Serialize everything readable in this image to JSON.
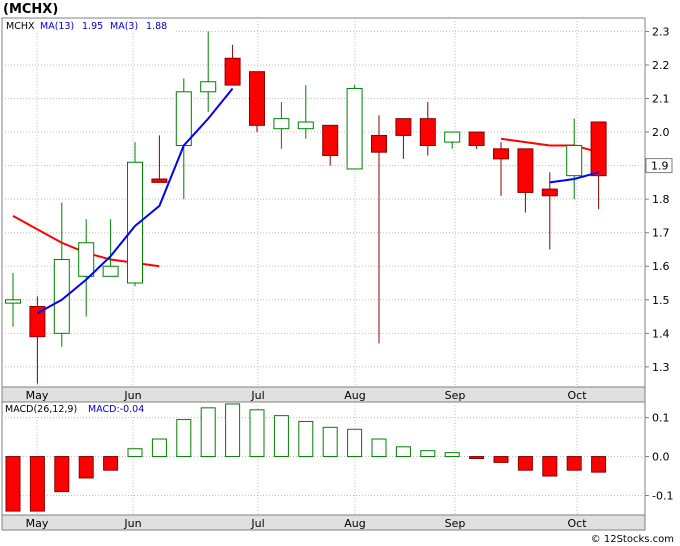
{
  "title": "(MCHX)",
  "watermark": "© 12Stocks.com",
  "price_panel": {
    "legend": {
      "symbol": "MCHX",
      "ma13_label": "MA(13)",
      "ma13_value": "1.95",
      "ma3_label": "MA(3)",
      "ma3_value": "1.88"
    },
    "last_price_label": "1.9"
  },
  "macd_panel": {
    "legend": {
      "params_label": "MACD(26,12,9)",
      "value_label": "MACD:-0.04"
    }
  },
  "colors": {
    "up_body": "#ffffff",
    "up_border": "#008000",
    "down_body": "#ff0000",
    "down_border": "#8b0000",
    "ma13": "#ff0000",
    "ma3": "#0000ff",
    "macd_pos": "#008000",
    "macd_neg": "#ff0000",
    "grid": "#bfbfbf",
    "axis_panel": "#e0e0e0"
  },
  "chart_data": [
    {
      "type": "candlestick",
      "title": "(MCHX)",
      "ylim": [
        1.24,
        2.34
      ],
      "y_ticks": [
        "1.3",
        "1.4",
        "1.5",
        "1.6",
        "1.7",
        "1.8",
        "1.9",
        "2.0",
        "2.1",
        "2.2",
        "2.3"
      ],
      "x_ticks": [
        "May",
        "Jun",
        "Jul",
        "Aug",
        "Sep",
        "Oct"
      ],
      "grid": true,
      "candles": [
        {
          "open": 1.49,
          "high": 1.58,
          "low": 1.42,
          "close": 1.5
        },
        {
          "open": 1.48,
          "high": 1.51,
          "low": 1.25,
          "close": 1.39
        },
        {
          "open": 1.4,
          "high": 1.79,
          "low": 1.36,
          "close": 1.62
        },
        {
          "open": 1.57,
          "high": 1.74,
          "low": 1.45,
          "close": 1.67
        },
        {
          "open": 1.57,
          "high": 1.74,
          "low": 1.57,
          "close": 1.6
        },
        {
          "open": 1.55,
          "high": 1.97,
          "low": 1.54,
          "close": 1.91
        },
        {
          "open": 1.86,
          "high": 1.99,
          "low": 1.85,
          "close": 1.85
        },
        {
          "open": 1.96,
          "high": 2.16,
          "low": 1.8,
          "close": 2.12
        },
        {
          "open": 2.12,
          "high": 2.3,
          "low": 2.06,
          "close": 2.15
        },
        {
          "open": 2.22,
          "high": 2.26,
          "low": 2.14,
          "close": 2.14
        },
        {
          "open": 2.18,
          "high": 2.18,
          "low": 2.0,
          "close": 2.02
        },
        {
          "open": 2.01,
          "high": 2.09,
          "low": 1.95,
          "close": 2.04
        },
        {
          "open": 2.01,
          "high": 2.14,
          "low": 1.98,
          "close": 2.03
        },
        {
          "open": 2.02,
          "high": 2.02,
          "low": 1.9,
          "close": 1.93
        },
        {
          "open": 1.89,
          "high": 2.14,
          "low": 1.89,
          "close": 2.13
        },
        {
          "open": 1.99,
          "high": 2.05,
          "low": 1.37,
          "close": 1.94
        },
        {
          "open": 2.04,
          "high": 2.04,
          "low": 1.92,
          "close": 1.99
        },
        {
          "open": 2.04,
          "high": 2.09,
          "low": 1.93,
          "close": 1.96
        },
        {
          "open": 1.97,
          "high": 2.0,
          "low": 1.95,
          "close": 2.0
        },
        {
          "open": 2.0,
          "high": 2.0,
          "low": 1.95,
          "close": 1.96
        },
        {
          "open": 1.95,
          "high": 1.97,
          "low": 1.81,
          "close": 1.92
        },
        {
          "open": 1.95,
          "high": 1.95,
          "low": 1.76,
          "close": 1.82
        },
        {
          "open": 1.83,
          "high": 1.88,
          "low": 1.65,
          "close": 1.81
        },
        {
          "open": 1.87,
          "high": 2.04,
          "low": 1.8,
          "close": 1.96
        },
        {
          "open": 2.03,
          "high": 2.03,
          "low": 1.77,
          "close": 1.87
        }
      ],
      "series": [
        {
          "name": "MA(13)",
          "values": [
            1.75,
            1.71,
            1.67,
            1.64,
            1.62,
            1.61,
            1.6,
            null,
            null,
            null,
            null,
            null,
            null,
            null,
            null,
            null,
            null,
            null,
            null,
            null,
            1.98,
            1.97,
            1.96,
            1.96,
            1.94
          ]
        },
        {
          "name": "MA(3)",
          "values": [
            null,
            1.46,
            1.5,
            1.56,
            1.63,
            1.72,
            1.78,
            1.96,
            2.04,
            2.13,
            null,
            null,
            null,
            null,
            null,
            null,
            null,
            null,
            null,
            null,
            null,
            null,
            1.85,
            1.86,
            1.88
          ]
        }
      ]
    },
    {
      "type": "bar",
      "title": "MACD(26,12,9)",
      "ylim": [
        -0.15,
        0.14
      ],
      "y_ticks": [
        "-0.1",
        "0.0",
        "0.1"
      ],
      "x_ticks": [
        "May",
        "Jun",
        "Jul",
        "Aug",
        "Sep",
        "Oct"
      ],
      "values": [
        -0.14,
        -0.14,
        -0.09,
        -0.055,
        -0.035,
        0.02,
        0.045,
        0.095,
        0.125,
        0.135,
        0.12,
        0.105,
        0.09,
        0.075,
        0.07,
        0.045,
        0.025,
        0.015,
        0.01,
        -0.005,
        -0.015,
        -0.035,
        -0.05,
        -0.035,
        -0.04
      ]
    }
  ]
}
